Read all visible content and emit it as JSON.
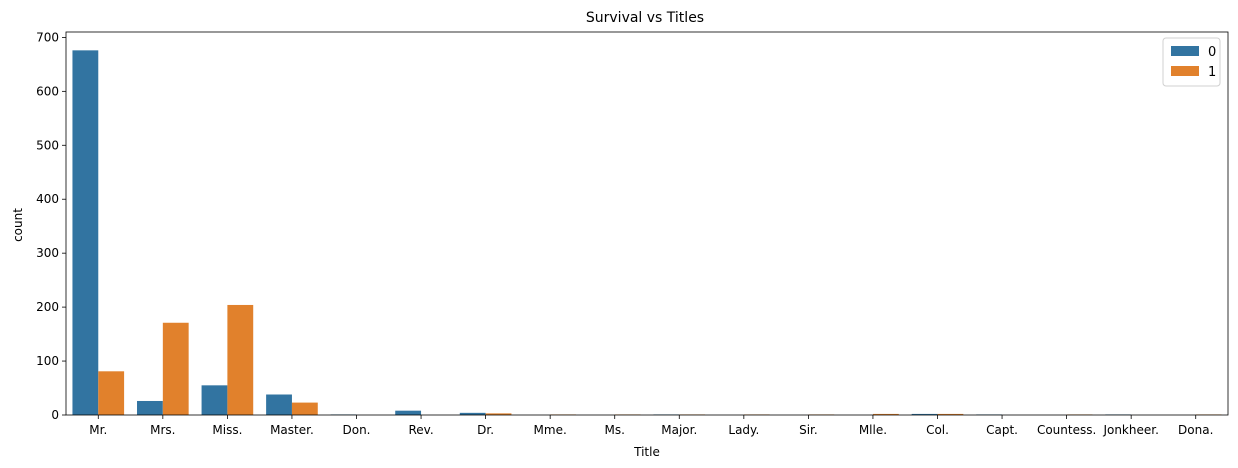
{
  "chart_data": {
    "type": "bar",
    "title": "Survival vs Titles",
    "xlabel": "Title",
    "ylabel": "count",
    "ylim": [
      0,
      710
    ],
    "yticks": [
      0,
      100,
      200,
      300,
      400,
      500,
      600,
      700
    ],
    "categories": [
      "Mr.",
      "Mrs.",
      "Miss.",
      "Master.",
      "Don.",
      "Rev.",
      "Dr.",
      "Mme.",
      "Ms.",
      "Major.",
      "Lady.",
      "Sir.",
      "Mlle.",
      "Col.",
      "Capt.",
      "Countess.",
      "Jonkheer.",
      "Dona."
    ],
    "series": [
      {
        "name": "0",
        "color": "#3274a1",
        "values": [
          676,
          26,
          55,
          38,
          1,
          8,
          4,
          0,
          0,
          1,
          0,
          0,
          0,
          2,
          1,
          0,
          1,
          0
        ]
      },
      {
        "name": "1",
        "color": "#e1812c",
        "values": [
          81,
          171,
          204,
          23,
          0,
          0,
          3,
          1,
          1,
          1,
          1,
          1,
          2,
          2,
          0,
          1,
          0,
          1
        ]
      }
    ],
    "legend": "top-right",
    "grid": false
  }
}
